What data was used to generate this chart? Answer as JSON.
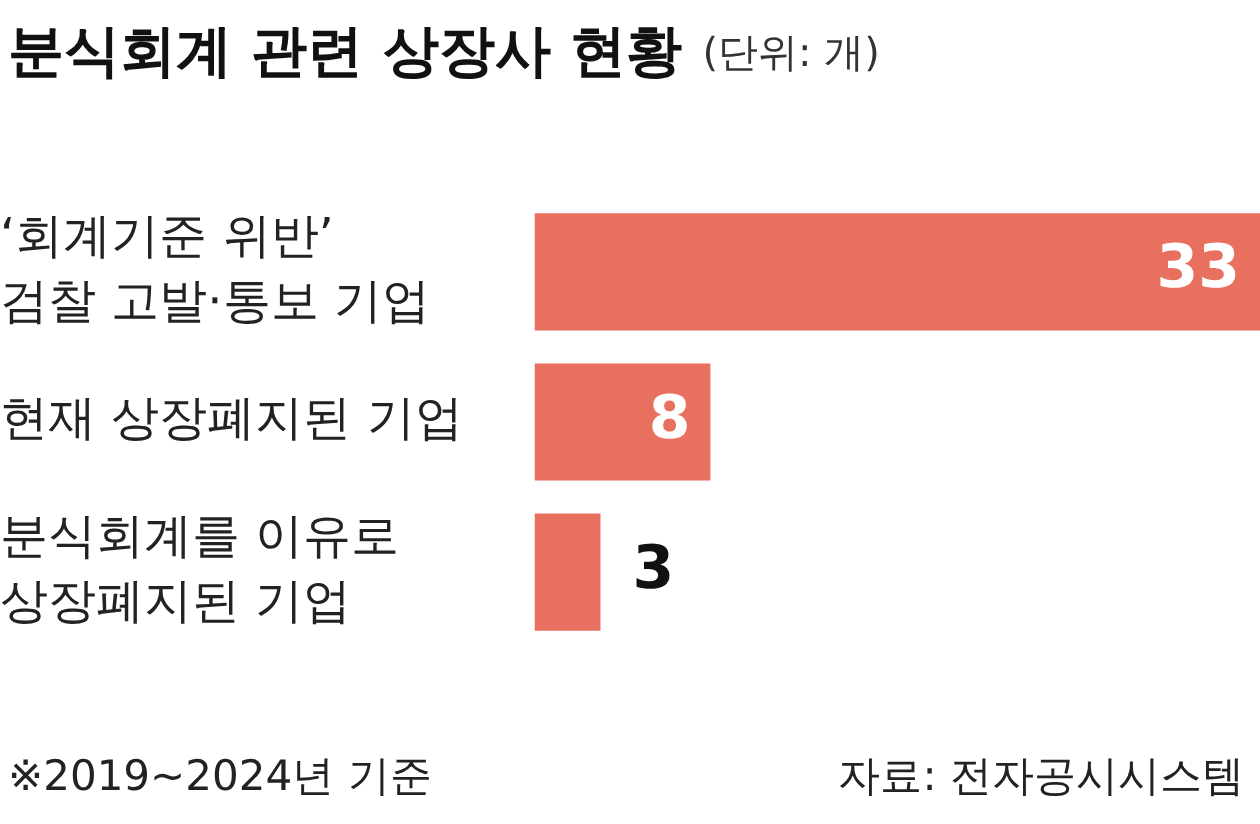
{
  "chart_data": {
    "type": "bar",
    "orientation": "horizontal",
    "title": "분식회계 관련 상장사 현황",
    "subtitle": "(단위: 개)",
    "categories": [
      "‘회계기준 위반’\n검찰 고발·통보 기업",
      "현재 상장폐지된 기업",
      "분식회계를 이유로\n상장폐지된 기업"
    ],
    "values": [
      33,
      8,
      3
    ],
    "color": "#e8705f",
    "data_labels": true,
    "grid": false,
    "legend": false,
    "annotations": [
      "※2019~2024년 기준",
      "자료: 전자공시시스템"
    ]
  }
}
